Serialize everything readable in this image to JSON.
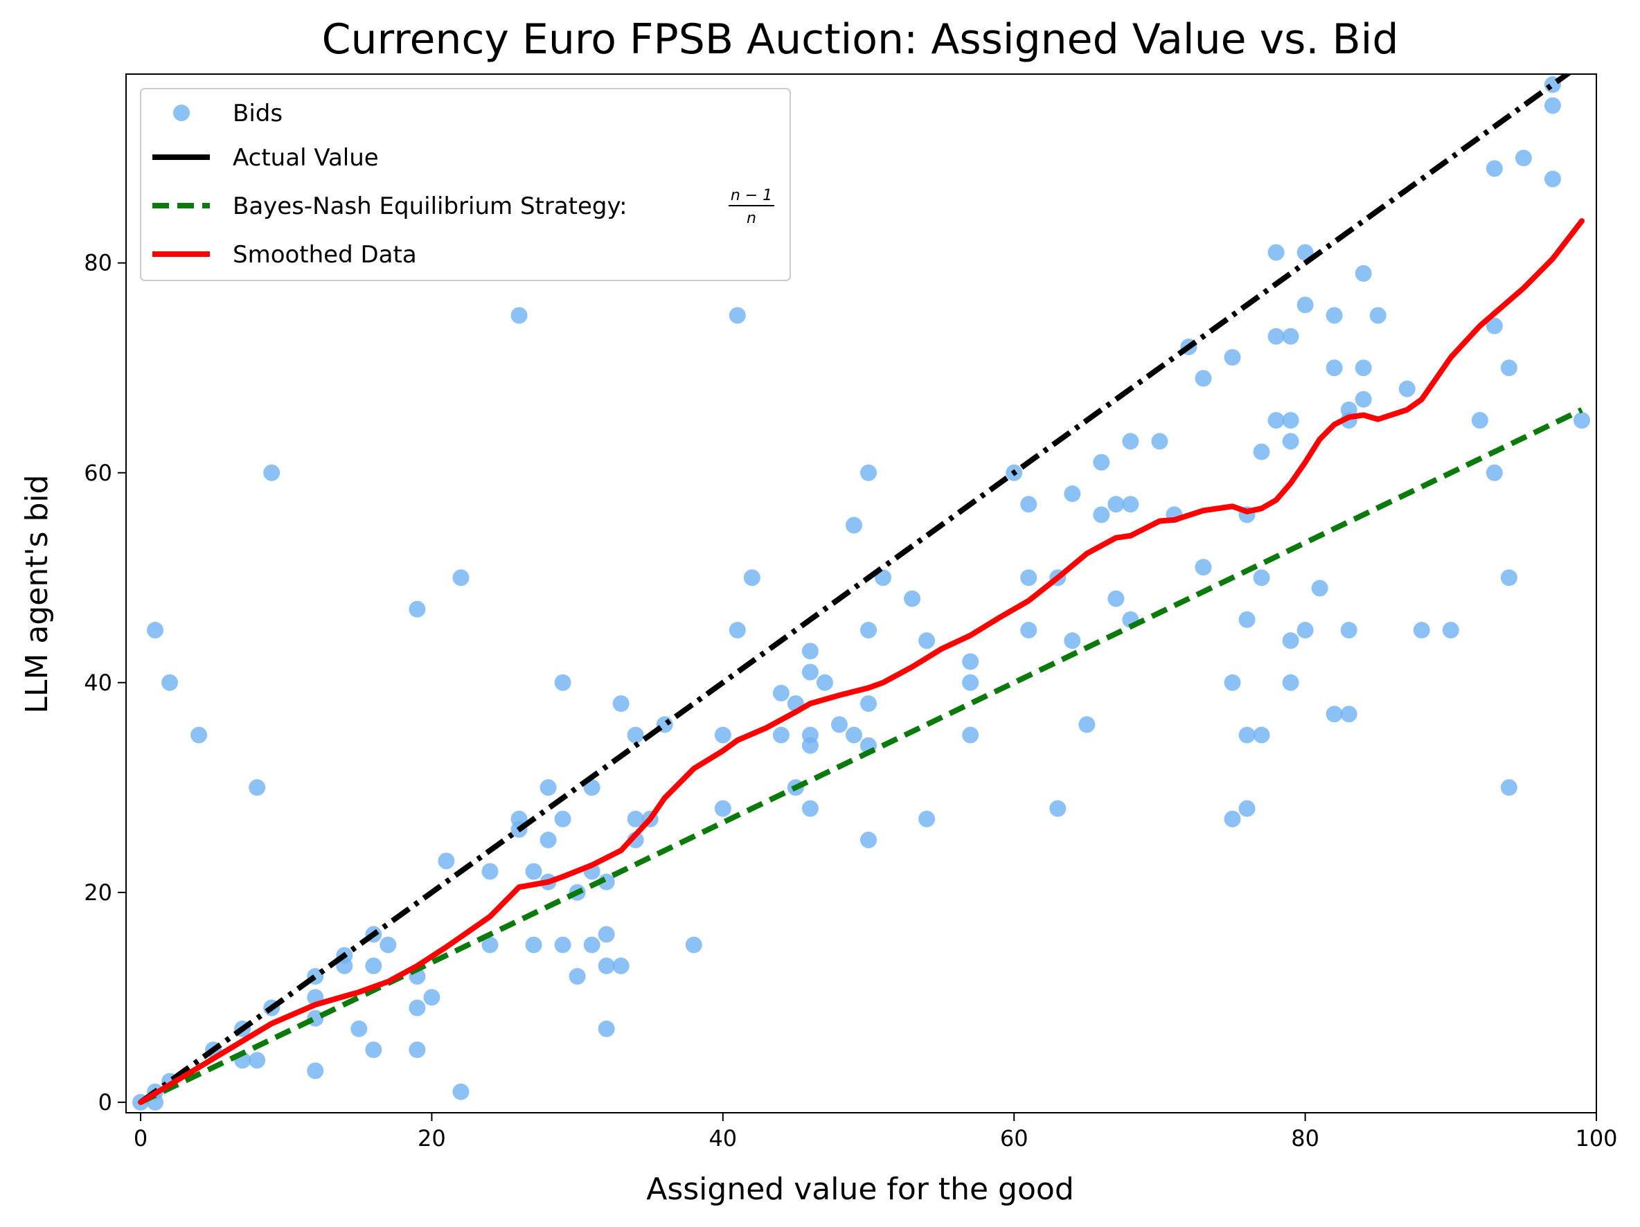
{
  "chart_data": {
    "type": "scatter",
    "title": "Currency Euro FPSB Auction: Assigned Value vs. Bid",
    "xlabel": "Assigned value for the good",
    "ylabel": "LLM agent's bid",
    "xlim": [
      -1,
      100
    ],
    "ylim": [
      -1,
      98
    ],
    "xticks": [
      0,
      20,
      40,
      60,
      80,
      100
    ],
    "yticks": [
      0,
      20,
      40,
      60,
      80
    ],
    "xtick_labels": [
      "0",
      "20",
      "40",
      "60",
      "80",
      "100"
    ],
    "ytick_labels": [
      "0",
      "20",
      "40",
      "60",
      "80"
    ],
    "grid": false,
    "legend_position": "top-left",
    "legend": {
      "bids": "Bids",
      "actual": "Actual Value",
      "bne_prefix": "Bayes-Nash Equilibrium Strategy: ",
      "bne_numerator": "n − 1",
      "bne_denominator": "n",
      "smoothed": "Smoothed Data"
    },
    "colors": {
      "bids": "#6fb2f2",
      "actual": "#000000",
      "bne": "#0a7a0a",
      "smoothed": "#ff0000"
    },
    "series": [
      {
        "name": "Bids",
        "kind": "scatter",
        "points": [
          [
            0,
            0
          ],
          [
            1,
            0
          ],
          [
            1,
            1
          ],
          [
            1,
            45
          ],
          [
            2,
            40
          ],
          [
            2,
            2
          ],
          [
            4,
            35
          ],
          [
            5,
            5
          ],
          [
            7,
            4
          ],
          [
            7,
            7
          ],
          [
            8,
            4
          ],
          [
            8,
            30
          ],
          [
            9,
            60
          ],
          [
            9,
            9
          ],
          [
            12,
            12
          ],
          [
            12,
            10
          ],
          [
            12,
            8
          ],
          [
            12,
            3
          ],
          [
            14,
            14
          ],
          [
            14,
            13
          ],
          [
            15,
            7
          ],
          [
            16,
            16
          ],
          [
            16,
            13
          ],
          [
            16,
            5
          ],
          [
            17,
            15
          ],
          [
            19,
            47
          ],
          [
            19,
            12
          ],
          [
            19,
            9
          ],
          [
            19,
            5
          ],
          [
            20,
            10
          ],
          [
            21,
            23
          ],
          [
            22,
            50
          ],
          [
            22,
            1
          ],
          [
            24,
            22
          ],
          [
            24,
            15
          ],
          [
            26,
            75
          ],
          [
            26,
            27
          ],
          [
            26,
            26
          ],
          [
            27,
            22
          ],
          [
            27,
            15
          ],
          [
            28,
            30
          ],
          [
            28,
            25
          ],
          [
            28,
            21
          ],
          [
            29,
            40
          ],
          [
            29,
            27
          ],
          [
            29,
            15
          ],
          [
            30,
            20
          ],
          [
            30,
            12
          ],
          [
            31,
            30
          ],
          [
            31,
            22
          ],
          [
            31,
            15
          ],
          [
            32,
            21
          ],
          [
            32,
            16
          ],
          [
            32,
            13
          ],
          [
            32,
            7
          ],
          [
            33,
            38
          ],
          [
            33,
            13
          ],
          [
            34,
            35
          ],
          [
            34,
            27
          ],
          [
            34,
            25
          ],
          [
            35,
            27
          ],
          [
            36,
            36
          ],
          [
            38,
            15
          ],
          [
            40,
            35
          ],
          [
            40,
            28
          ],
          [
            41,
            75
          ],
          [
            41,
            45
          ],
          [
            42,
            50
          ],
          [
            44,
            39
          ],
          [
            44,
            35
          ],
          [
            45,
            38
          ],
          [
            45,
            30
          ],
          [
            46,
            43
          ],
          [
            46,
            41
          ],
          [
            46,
            35
          ],
          [
            46,
            34
          ],
          [
            46,
            28
          ],
          [
            47,
            40
          ],
          [
            48,
            36
          ],
          [
            49,
            55
          ],
          [
            49,
            35
          ],
          [
            50,
            60
          ],
          [
            50,
            45
          ],
          [
            50,
            38
          ],
          [
            50,
            34
          ],
          [
            50,
            25
          ],
          [
            51,
            50
          ],
          [
            53,
            48
          ],
          [
            54,
            44
          ],
          [
            54,
            27
          ],
          [
            57,
            42
          ],
          [
            57,
            40
          ],
          [
            57,
            35
          ],
          [
            60,
            60
          ],
          [
            61,
            57
          ],
          [
            61,
            50
          ],
          [
            61,
            45
          ],
          [
            63,
            50
          ],
          [
            63,
            28
          ],
          [
            64,
            58
          ],
          [
            64,
            44
          ],
          [
            65,
            36
          ],
          [
            66,
            61
          ],
          [
            66,
            56
          ],
          [
            67,
            57
          ],
          [
            67,
            48
          ],
          [
            68,
            63
          ],
          [
            68,
            57
          ],
          [
            68,
            46
          ],
          [
            70,
            63
          ],
          [
            71,
            56
          ],
          [
            72,
            72
          ],
          [
            73,
            69
          ],
          [
            73,
            51
          ],
          [
            75,
            71
          ],
          [
            75,
            40
          ],
          [
            75,
            27
          ],
          [
            76,
            56
          ],
          [
            76,
            46
          ],
          [
            76,
            35
          ],
          [
            76,
            28
          ],
          [
            77,
            62
          ],
          [
            77,
            50
          ],
          [
            77,
            35
          ],
          [
            78,
            81
          ],
          [
            78,
            73
          ],
          [
            78,
            65
          ],
          [
            79,
            73
          ],
          [
            79,
            65
          ],
          [
            79,
            63
          ],
          [
            79,
            44
          ],
          [
            79,
            40
          ],
          [
            80,
            81
          ],
          [
            80,
            76
          ],
          [
            80,
            45
          ],
          [
            81,
            49
          ],
          [
            82,
            75
          ],
          [
            82,
            70
          ],
          [
            82,
            37
          ],
          [
            83,
            66
          ],
          [
            83,
            65
          ],
          [
            83,
            45
          ],
          [
            83,
            37
          ],
          [
            84,
            79
          ],
          [
            84,
            70
          ],
          [
            84,
            67
          ],
          [
            85,
            75
          ],
          [
            87,
            68
          ],
          [
            88,
            45
          ],
          [
            90,
            45
          ],
          [
            92,
            65
          ],
          [
            93,
            89
          ],
          [
            93,
            74
          ],
          [
            93,
            60
          ],
          [
            94,
            70
          ],
          [
            94,
            50
          ],
          [
            94,
            30
          ],
          [
            95,
            90
          ],
          [
            97,
            97
          ],
          [
            97,
            95
          ],
          [
            97,
            88
          ],
          [
            99,
            65
          ]
        ]
      },
      {
        "name": "Actual Value",
        "kind": "line",
        "x": [
          0,
          100
        ],
        "y": [
          0,
          100
        ]
      },
      {
        "name": "Bayes-Nash Equilibrium Strategy",
        "kind": "line",
        "x": [
          0,
          99
        ],
        "y": [
          0,
          66
        ]
      },
      {
        "name": "Smoothed Data",
        "kind": "line",
        "points": [
          [
            0,
            0
          ],
          [
            3,
            2.5
          ],
          [
            6,
            5
          ],
          [
            9,
            7.5
          ],
          [
            12,
            9.3
          ],
          [
            15,
            10.5
          ],
          [
            17,
            11.5
          ],
          [
            19,
            13
          ],
          [
            21,
            14.8
          ],
          [
            24,
            17.7
          ],
          [
            26,
            20.5
          ],
          [
            28,
            21
          ],
          [
            29,
            21.5
          ],
          [
            31,
            22.6
          ],
          [
            33,
            24
          ],
          [
            35,
            27
          ],
          [
            36,
            29
          ],
          [
            38,
            31.8
          ],
          [
            40,
            33.5
          ],
          [
            41,
            34.5
          ],
          [
            43,
            35.7
          ],
          [
            45,
            37.2
          ],
          [
            46,
            38
          ],
          [
            48,
            38.8
          ],
          [
            50,
            39.5
          ],
          [
            51,
            40
          ],
          [
            53,
            41.5
          ],
          [
            55,
            43.2
          ],
          [
            57,
            44.5
          ],
          [
            59,
            46.2
          ],
          [
            61,
            47.8
          ],
          [
            63,
            50
          ],
          [
            65,
            52.3
          ],
          [
            67,
            53.8
          ],
          [
            68,
            54
          ],
          [
            70,
            55.4
          ],
          [
            71,
            55.5
          ],
          [
            73,
            56.4
          ],
          [
            75,
            56.8
          ],
          [
            76,
            56.3
          ],
          [
            77,
            56.6
          ],
          [
            78,
            57.4
          ],
          [
            79,
            59
          ],
          [
            80,
            61
          ],
          [
            81,
            63.2
          ],
          [
            82,
            64.6
          ],
          [
            83,
            65.3
          ],
          [
            84,
            65.5
          ],
          [
            85,
            65.1
          ],
          [
            87,
            66
          ],
          [
            88,
            67
          ],
          [
            90,
            71
          ],
          [
            92,
            74
          ],
          [
            95,
            77.6
          ],
          [
            97,
            80.4
          ],
          [
            99,
            84
          ]
        ]
      }
    ]
  }
}
